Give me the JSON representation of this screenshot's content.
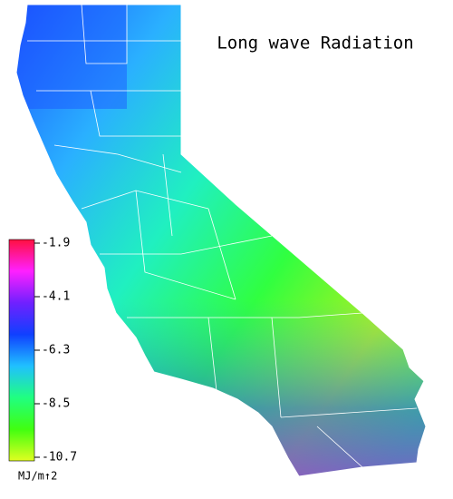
{
  "title": "Long wave Radiation",
  "colorbar": {
    "lim": [
      -1.9,
      -10.7
    ],
    "ticks": [
      -1.9,
      -4.1,
      -6.3,
      -8.5,
      -10.7
    ],
    "unit": "MJ/m↑2",
    "colors": [
      "#ff1040",
      "#ff20ff",
      "#7020ff",
      "#1040ff",
      "#20c0ff",
      "#20ff80",
      "#40ff10",
      "#e0ff20"
    ]
  }
}
